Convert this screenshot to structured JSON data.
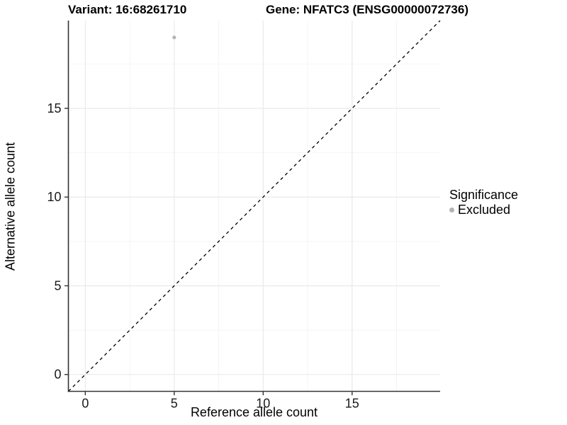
{
  "title": {
    "left": "Variant: 16:68261710",
    "right": "Gene: NFATC3 (ENSG00000072736)"
  },
  "legend": {
    "title": "Significance",
    "items": [
      {
        "label": "Excluded",
        "color": "#b4b4b4"
      }
    ]
  },
  "chart_data": {
    "type": "scatter",
    "title": "Variant: 16:68261710 | Gene: NFATC3 (ENSG00000072736)",
    "xlabel": "Reference allele count",
    "ylabel": "Alternative allele count",
    "xlim": [
      -0.95,
      19.95
    ],
    "ylim": [
      -0.95,
      19.95
    ],
    "x_ticks": [
      0,
      5,
      10,
      15
    ],
    "y_ticks": [
      0,
      5,
      10,
      15
    ],
    "x_minor_ticks": [
      2.5,
      7.5,
      12.5,
      17.5
    ],
    "y_minor_ticks": [
      2.5,
      7.5,
      12.5,
      17.5
    ],
    "grid": "major+minor",
    "legend_position": "right",
    "series": [
      {
        "name": "Excluded",
        "color": "#b4b4b4",
        "points": [
          {
            "x": 5,
            "y": 19
          }
        ]
      }
    ],
    "reference_line": {
      "type": "identity",
      "slope": 1,
      "intercept": 0,
      "style": "dashed",
      "color": "#000000"
    }
  },
  "colors": {
    "background": "#ffffff",
    "axis_line": "#333333",
    "tick_text": "#1a1a1a",
    "grid_major": "#e9e9e9",
    "grid_minor": "#f4f4f4",
    "point": "#b4b4b4",
    "reference_line": "#000000"
  }
}
